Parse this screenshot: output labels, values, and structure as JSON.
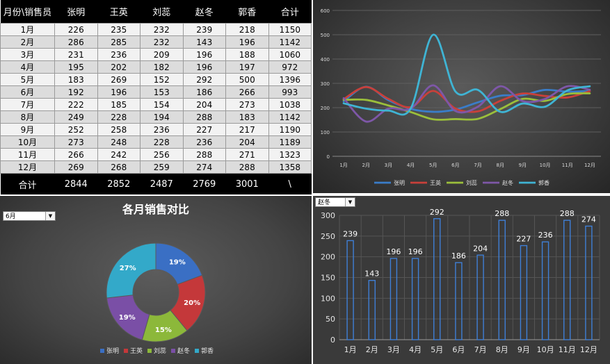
{
  "table": {
    "headers": [
      "月份\\销售员",
      "张明",
      "王英",
      "刘蕊",
      "赵冬",
      "郭香",
      "合计"
    ],
    "rows": [
      {
        "month": "1月",
        "values": [
          226,
          235,
          232,
          239,
          218
        ],
        "total": 1150
      },
      {
        "month": "2月",
        "values": [
          286,
          285,
          232,
          143,
          196
        ],
        "total": 1142
      },
      {
        "month": "3月",
        "values": [
          231,
          236,
          209,
          196,
          188
        ],
        "total": 1060
      },
      {
        "month": "4月",
        "values": [
          195,
          202,
          182,
          196,
          197
        ],
        "total": 972
      },
      {
        "month": "5月",
        "values": [
          183,
          269,
          152,
          292,
          500
        ],
        "total": 1396
      },
      {
        "month": "6月",
        "values": [
          192,
          196,
          153,
          186,
          266
        ],
        "total": 993
      },
      {
        "month": "7月",
        "values": [
          222,
          185,
          154,
          204,
          273
        ],
        "total": 1038
      },
      {
        "month": "8月",
        "values": [
          249,
          228,
          194,
          288,
          183
        ],
        "total": 1142
      },
      {
        "month": "9月",
        "values": [
          252,
          258,
          236,
          227,
          217
        ],
        "total": 1190
      },
      {
        "month": "10月",
        "values": [
          273,
          248,
          228,
          236,
          204
        ],
        "total": 1189
      },
      {
        "month": "11月",
        "values": [
          266,
          242,
          256,
          288,
          271
        ],
        "total": 1323
      },
      {
        "month": "12月",
        "values": [
          269,
          268,
          259,
          274,
          288
        ],
        "total": 1358
      }
    ],
    "footer": {
      "label": "合计",
      "values": [
        2844,
        2852,
        2487,
        2769,
        3001
      ],
      "total": "\\"
    }
  },
  "pie_selector": {
    "value": "6月"
  },
  "bar_selector": {
    "value": "赵冬"
  },
  "chart_data": [
    {
      "type": "line",
      "categories": [
        "1月",
        "2月",
        "3月",
        "4月",
        "5月",
        "6月",
        "7月",
        "8月",
        "9月",
        "10月",
        "11月",
        "12月"
      ],
      "ylim": [
        0,
        600
      ],
      "yticks": [
        0,
        100,
        200,
        300,
        400,
        500,
        600
      ],
      "smooth": true,
      "legend": "bottom",
      "series": [
        {
          "name": "张明",
          "color": "#3a7dc9",
          "values": [
            226,
            286,
            231,
            195,
            183,
            192,
            222,
            249,
            252,
            273,
            266,
            269
          ]
        },
        {
          "name": "王英",
          "color": "#c9403a",
          "values": [
            235,
            285,
            236,
            202,
            269,
            196,
            185,
            228,
            258,
            248,
            242,
            268
          ]
        },
        {
          "name": "刘蕊",
          "color": "#9bbf3b",
          "values": [
            232,
            232,
            209,
            182,
            152,
            153,
            154,
            194,
            236,
            228,
            256,
            259
          ]
        },
        {
          "name": "赵冬",
          "color": "#7e57a8",
          "values": [
            239,
            143,
            196,
            196,
            292,
            186,
            204,
            288,
            227,
            236,
            288,
            274
          ]
        },
        {
          "name": "郭香",
          "color": "#3fb4d4",
          "values": [
            218,
            196,
            188,
            197,
            500,
            266,
            273,
            183,
            217,
            204,
            271,
            288
          ]
        }
      ]
    },
    {
      "type": "pie",
      "title": "各月销售对比",
      "donut": true,
      "legend": "bottom",
      "labels": [
        "张明",
        "王英",
        "刘蕊",
        "赵冬",
        "郭香"
      ],
      "values": [
        192,
        196,
        153,
        186,
        266
      ],
      "percent_labels": [
        "19%",
        "20%",
        "15%",
        "19%",
        "27%"
      ],
      "colors": [
        "#3a6fc4",
        "#c4383a",
        "#8cb83a",
        "#7a4fa6",
        "#33a9c9"
      ]
    },
    {
      "type": "bar",
      "categories": [
        "1月",
        "2月",
        "3月",
        "4月",
        "5月",
        "6月",
        "7月",
        "8月",
        "9月",
        "10月",
        "11月",
        "12月"
      ],
      "values": [
        239,
        143,
        196,
        196,
        292,
        186,
        204,
        288,
        227,
        236,
        288,
        274
      ],
      "ylim": [
        0,
        300
      ],
      "yticks": [
        0,
        50,
        100,
        150,
        200,
        250,
        300
      ],
      "color": "#3f7fd6"
    }
  ]
}
